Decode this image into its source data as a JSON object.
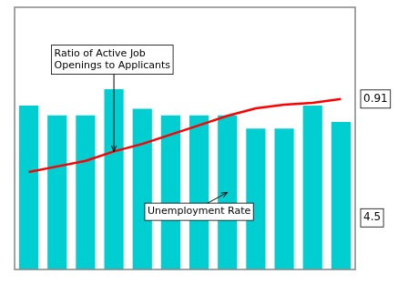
{
  "chart_data": {
    "type": "bar",
    "categories": [
      null,
      null,
      null,
      null,
      null,
      null,
      null,
      null,
      null,
      null,
      null,
      null
    ],
    "series": [
      {
        "type": "bar",
        "color": "#00CED1",
        "values": [
          5.0,
          4.7,
          4.7,
          5.5,
          4.9,
          4.7,
          4.7,
          4.7,
          4.3,
          4.3,
          5.0,
          4.5
        ]
      },
      {
        "type": "line",
        "axis": "y2",
        "color": "#FF0000",
        "values": [
          0.52,
          0.55,
          0.58,
          0.63,
          0.67,
          0.72,
          0.77,
          0.82,
          0.86,
          0.88,
          0.89,
          0.91
        ]
      }
    ],
    "ylim": [
      0,
      8
    ],
    "y2lim": [
      0.0,
      1.4
    ],
    "grid": false,
    "tick_labels": false,
    "annotations": [
      {
        "text": "Unemployment Rate",
        "series": 0,
        "index": 7
      },
      {
        "text": "Ratio of Active Job\nOpenings to Applicants",
        "series": 1,
        "index": 3
      },
      {
        "text": "4.5",
        "series": 0,
        "index": 11
      },
      {
        "text": "0.91",
        "series": 1,
        "index": 11
      }
    ]
  }
}
